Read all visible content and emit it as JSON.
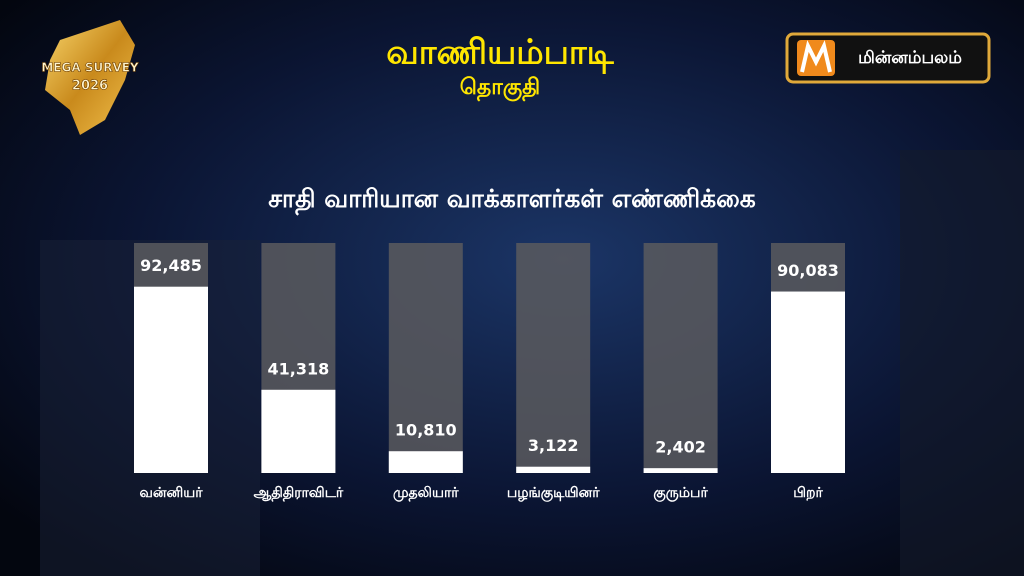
{
  "branding": {
    "survey": "MEGA SURVEY",
    "year": "2026",
    "channel": "மின்னம்பலம்"
  },
  "chart_data": {
    "type": "bar",
    "title": "வாணியம்பாடி",
    "subtitle": "தொகுதி",
    "chart_title": "சாதி வாரியான வாக்காளர்கள்  எண்ணிக்கை",
    "categories": [
      "வன்னியர்",
      "ஆதிதிராவிடர்",
      "முதலியார்",
      "பழங்குடியினர்",
      "குரும்பர்",
      "பிறர்"
    ],
    "values": [
      92485,
      41318,
      10810,
      3122,
      2402,
      90083
    ],
    "value_labels": [
      "92,485",
      "41,318",
      "10,810",
      "3,122",
      "2,402",
      "90,083"
    ],
    "color": "#ffffff"
  }
}
